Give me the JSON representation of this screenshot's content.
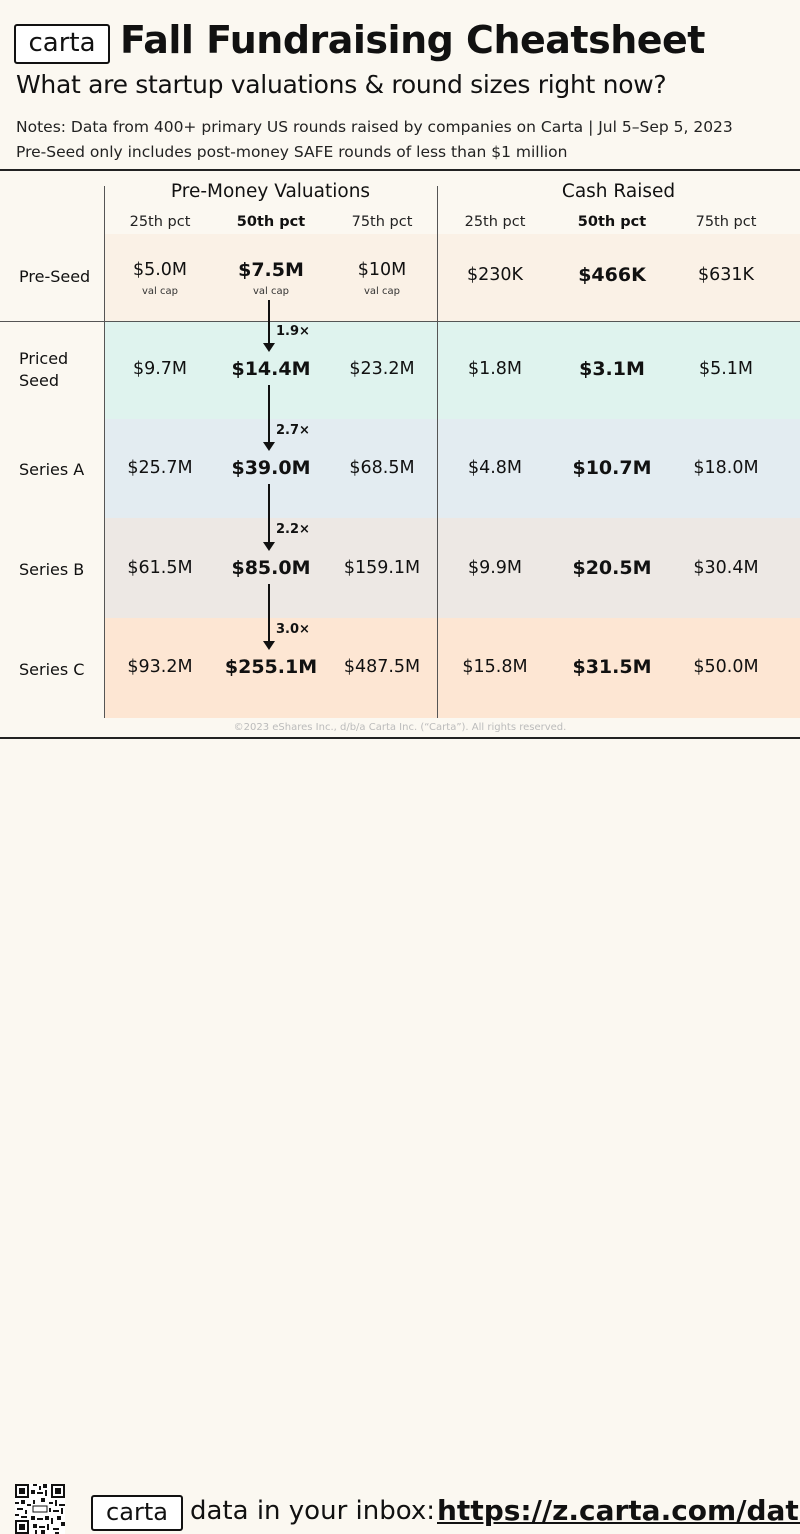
{
  "header": {
    "logo": "carta",
    "title": "Fall Fundraising Cheatsheet",
    "subtitle": "What are startup valuations & round sizes right now?",
    "note1": "Notes: Data from 400+ primary US rounds raised by companies on Carta | Jul 5–Sep 5, 2023",
    "note2": "Pre-Seed only includes post-money SAFE rounds of less than $1 million"
  },
  "colors": {
    "pre_seed": "#faf1e6",
    "priced_seed": "#dff3ee",
    "series_a": "#e3ecf1",
    "series_b": "#ede8e4",
    "series_c": "#fde6d3",
    "page": "#fbf8f1"
  },
  "chart_data": {
    "type": "table",
    "groups": [
      "Pre-Money Valuations",
      "Cash Raised"
    ],
    "columns": [
      "25th pct",
      "50th pct",
      "75th pct",
      "25th pct",
      "50th pct",
      "75th pct"
    ],
    "rows": [
      {
        "label": "Pre-Seed",
        "values": [
          "$5.0M",
          "$7.5M",
          "$10M",
          "$230K",
          "$466K",
          "$631K"
        ],
        "sub": [
          "val cap",
          "val cap",
          "val cap"
        ]
      },
      {
        "label": "Priced\nSeed",
        "values": [
          "$9.7M",
          "$14.4M",
          "$23.2M",
          "$1.8M",
          "$3.1M",
          "$5.1M"
        ]
      },
      {
        "label": "Series A",
        "values": [
          "$25.7M",
          "$39.0M",
          "$68.5M",
          "$4.8M",
          "$10.7M",
          "$18.0M"
        ]
      },
      {
        "label": "Series B",
        "values": [
          "$61.5M",
          "$85.0M",
          "$159.1M",
          "$9.9M",
          "$20.5M",
          "$30.4M"
        ]
      },
      {
        "label": "Series C",
        "values": [
          "$93.2M",
          "$255.1M",
          "$487.5M",
          "$15.8M",
          "$31.5M",
          "$50.0M"
        ]
      }
    ],
    "multipliers": [
      "1.9×",
      "2.7×",
      "2.2×",
      "3.0×"
    ]
  },
  "copyright": "©2023 eShares Inc., d/b/a Carta Inc. (“Carta”). All rights reserved.",
  "footer": {
    "logo": "carta",
    "text": "data in your inbox:",
    "link": "https://z.carta.com/data"
  }
}
